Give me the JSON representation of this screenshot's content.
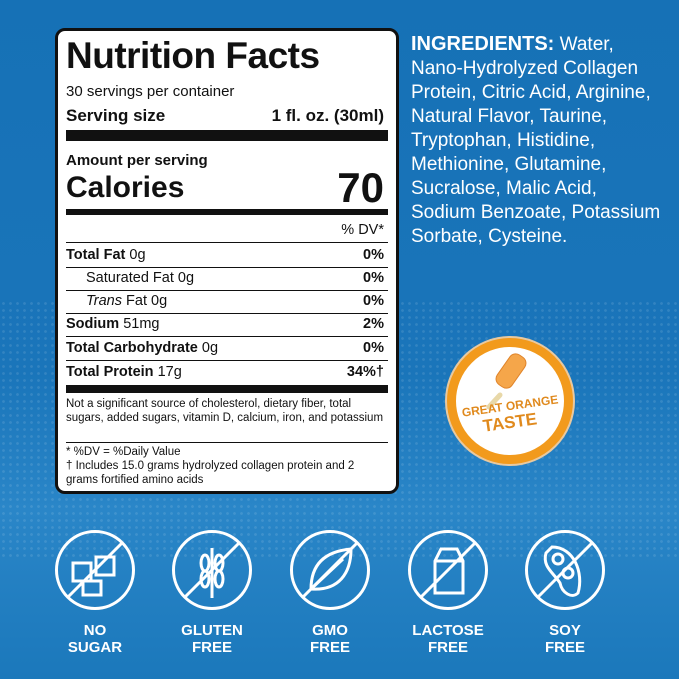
{
  "nutrition": {
    "title": "Nutrition Facts",
    "servings": "30 servings per container",
    "serving_size_label": "Serving size",
    "serving_size_value": "1 fl. oz. (30ml)",
    "amount_per_serving": "Amount per serving",
    "calories_label": "Calories",
    "calories_value": "70",
    "dv_header": "% DV*",
    "rows": [
      {
        "label": "Total Fat",
        "amount": "0g",
        "dv": "0%"
      },
      {
        "label": "Saturated Fat",
        "amount": "0g",
        "dv": "0%"
      },
      {
        "label": "Trans",
        "label_suffix": "Fat",
        "amount": "0g",
        "dv": "0%"
      },
      {
        "label": "Sodium",
        "amount": "51mg",
        "dv": "2%"
      },
      {
        "label": "Total Carbohydrate",
        "amount": "0g",
        "dv": "0%"
      },
      {
        "label": "Total Protein",
        "amount": "17g",
        "dv": "34%†"
      }
    ],
    "not_significant": "Not a significant source of cholesterol, dietary fiber, total sugars, added sugars, vitamin D, calcium, iron, and potassium",
    "dv_note": "* %DV = %Daily Value",
    "dagger_note": "† Includes 15.0 grams hydrolyzed collagen protein and 2 grams fortified amino acids"
  },
  "ingredients": {
    "label": "INGREDIENTS:",
    "text": "Water, Nano-Hydrolyzed Collagen Protein, Citric Acid, Arginine, Natural Flavor, Taurine, Tryptophan, Histidine, Methionine, Glutamine, Sucralose, Malic Acid, Sodium Benzoate, Potassium Sorbate, Cysteine."
  },
  "badge": {
    "line1": "GREAT ORANGE",
    "line2": "TASTE",
    "icon": "popsicle-icon"
  },
  "features": [
    {
      "line1": "NO",
      "line2": "SUGAR",
      "icon": "sugar-cube-icon"
    },
    {
      "line1": "GLUTEN",
      "line2": "FREE",
      "icon": "wheat-icon"
    },
    {
      "line1": "GMO",
      "line2": "FREE",
      "icon": "leaf-icon"
    },
    {
      "line1": "LACTOSE",
      "line2": "FREE",
      "icon": "milk-carton-icon"
    },
    {
      "line1": "SOY",
      "line2": "FREE",
      "icon": "soybean-icon"
    }
  ],
  "colors": {
    "background": "#1a75ba",
    "badge_orange": "#f29a1c",
    "badge_text": "#e08a1e"
  }
}
